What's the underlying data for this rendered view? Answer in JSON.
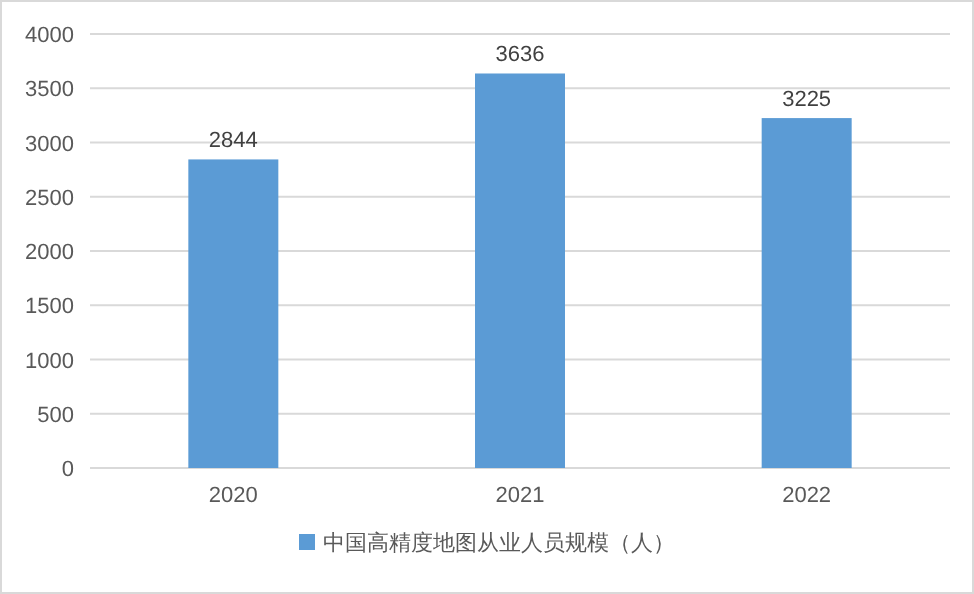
{
  "chart_data": {
    "type": "bar",
    "categories": [
      "2020",
      "2021",
      "2022"
    ],
    "series": [
      {
        "name": "中国高精度地图从业人员规模（人）",
        "color": "#5b9bd5",
        "values": [
          2844,
          3636,
          3225
        ]
      }
    ],
    "ylim": [
      0,
      4000
    ],
    "yticks": [
      0,
      500,
      1000,
      1500,
      2000,
      2500,
      3000,
      3500,
      4000
    ],
    "grid": "y",
    "legend": "bottom",
    "data_labels": true
  }
}
